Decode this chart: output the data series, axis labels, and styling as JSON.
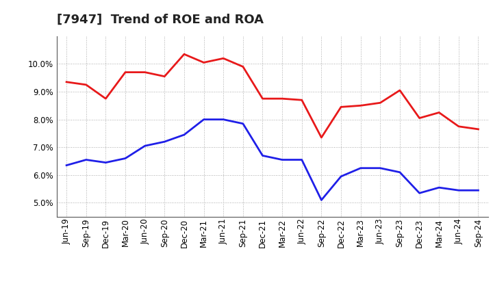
{
  "title": "[7947]  Trend of ROE and ROA",
  "x_labels": [
    "Jun-19",
    "Sep-19",
    "Dec-19",
    "Mar-20",
    "Jun-20",
    "Sep-20",
    "Dec-20",
    "Mar-21",
    "Jun-21",
    "Sep-21",
    "Dec-21",
    "Mar-22",
    "Jun-22",
    "Sep-22",
    "Dec-22",
    "Mar-23",
    "Jun-23",
    "Sep-23",
    "Dec-23",
    "Mar-24",
    "Jun-24",
    "Sep-24"
  ],
  "roe": [
    9.35,
    9.25,
    8.75,
    9.7,
    9.7,
    9.55,
    10.35,
    10.05,
    10.2,
    9.9,
    8.75,
    8.75,
    8.7,
    7.35,
    8.45,
    8.5,
    8.6,
    9.05,
    8.05,
    8.25,
    7.75,
    7.65
  ],
  "roa": [
    6.35,
    6.55,
    6.45,
    6.6,
    7.05,
    7.2,
    7.45,
    8.0,
    8.0,
    7.85,
    6.7,
    6.55,
    6.55,
    5.1,
    5.95,
    6.25,
    6.25,
    6.1,
    5.35,
    5.55,
    5.45,
    5.45
  ],
  "roe_color": "#e8191a",
  "roa_color": "#1f1fe8",
  "ylim": [
    4.5,
    11.0
  ],
  "yticks": [
    5.0,
    6.0,
    7.0,
    8.0,
    9.0,
    10.0
  ],
  "background_color": "#ffffff",
  "grid_color": "#aaaaaa",
  "title_fontsize": 13,
  "legend_fontsize": 10,
  "tick_fontsize": 8.5
}
